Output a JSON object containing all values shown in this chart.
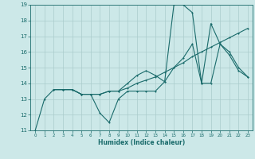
{
  "xlabel": "Humidex (Indice chaleur)",
  "bg_color": "#cce8e8",
  "grid_color": "#aacccc",
  "line_color": "#1a6b6b",
  "xlim": [
    -0.5,
    23.5
  ],
  "ylim": [
    11,
    19
  ],
  "xticks": [
    0,
    1,
    2,
    3,
    4,
    5,
    6,
    7,
    8,
    9,
    10,
    11,
    12,
    13,
    14,
    15,
    16,
    17,
    18,
    19,
    20,
    21,
    22,
    23
  ],
  "yticks": [
    11,
    12,
    13,
    14,
    15,
    16,
    17,
    18,
    19
  ],
  "s1_x": [
    0,
    1,
    2,
    3,
    4,
    5,
    6,
    7,
    8,
    9,
    10,
    11,
    12,
    13,
    14,
    15,
    16,
    17,
    18,
    19,
    20,
    21,
    22,
    23
  ],
  "s1_y": [
    11.0,
    13.0,
    13.6,
    13.6,
    13.6,
    13.3,
    13.3,
    12.1,
    11.5,
    13.0,
    13.5,
    13.5,
    13.5,
    13.5,
    14.1,
    19.0,
    19.0,
    18.5,
    14.0,
    17.8,
    16.5,
    16.0,
    15.0,
    14.4
  ],
  "s2_x": [
    2,
    3,
    4,
    5,
    6,
    7,
    8,
    9,
    10,
    11,
    12,
    13,
    14,
    15,
    16,
    17,
    18,
    19,
    20,
    21,
    22,
    23
  ],
  "s2_y": [
    13.6,
    13.6,
    13.6,
    13.3,
    13.3,
    13.3,
    13.5,
    13.5,
    14.0,
    14.5,
    14.8,
    14.5,
    14.1,
    15.0,
    15.6,
    16.5,
    14.0,
    14.0,
    16.5,
    15.8,
    14.8,
    14.4
  ],
  "s3_x": [
    2,
    3,
    4,
    5,
    6,
    7,
    8,
    9,
    10,
    11,
    12,
    13,
    14,
    15,
    16,
    17,
    18,
    19,
    20,
    21,
    22,
    23
  ],
  "s3_y": [
    13.6,
    13.6,
    13.6,
    13.3,
    13.3,
    13.3,
    13.5,
    13.5,
    13.7,
    14.0,
    14.2,
    14.4,
    14.7,
    15.0,
    15.3,
    15.7,
    16.0,
    16.3,
    16.6,
    16.9,
    17.2,
    17.5
  ]
}
